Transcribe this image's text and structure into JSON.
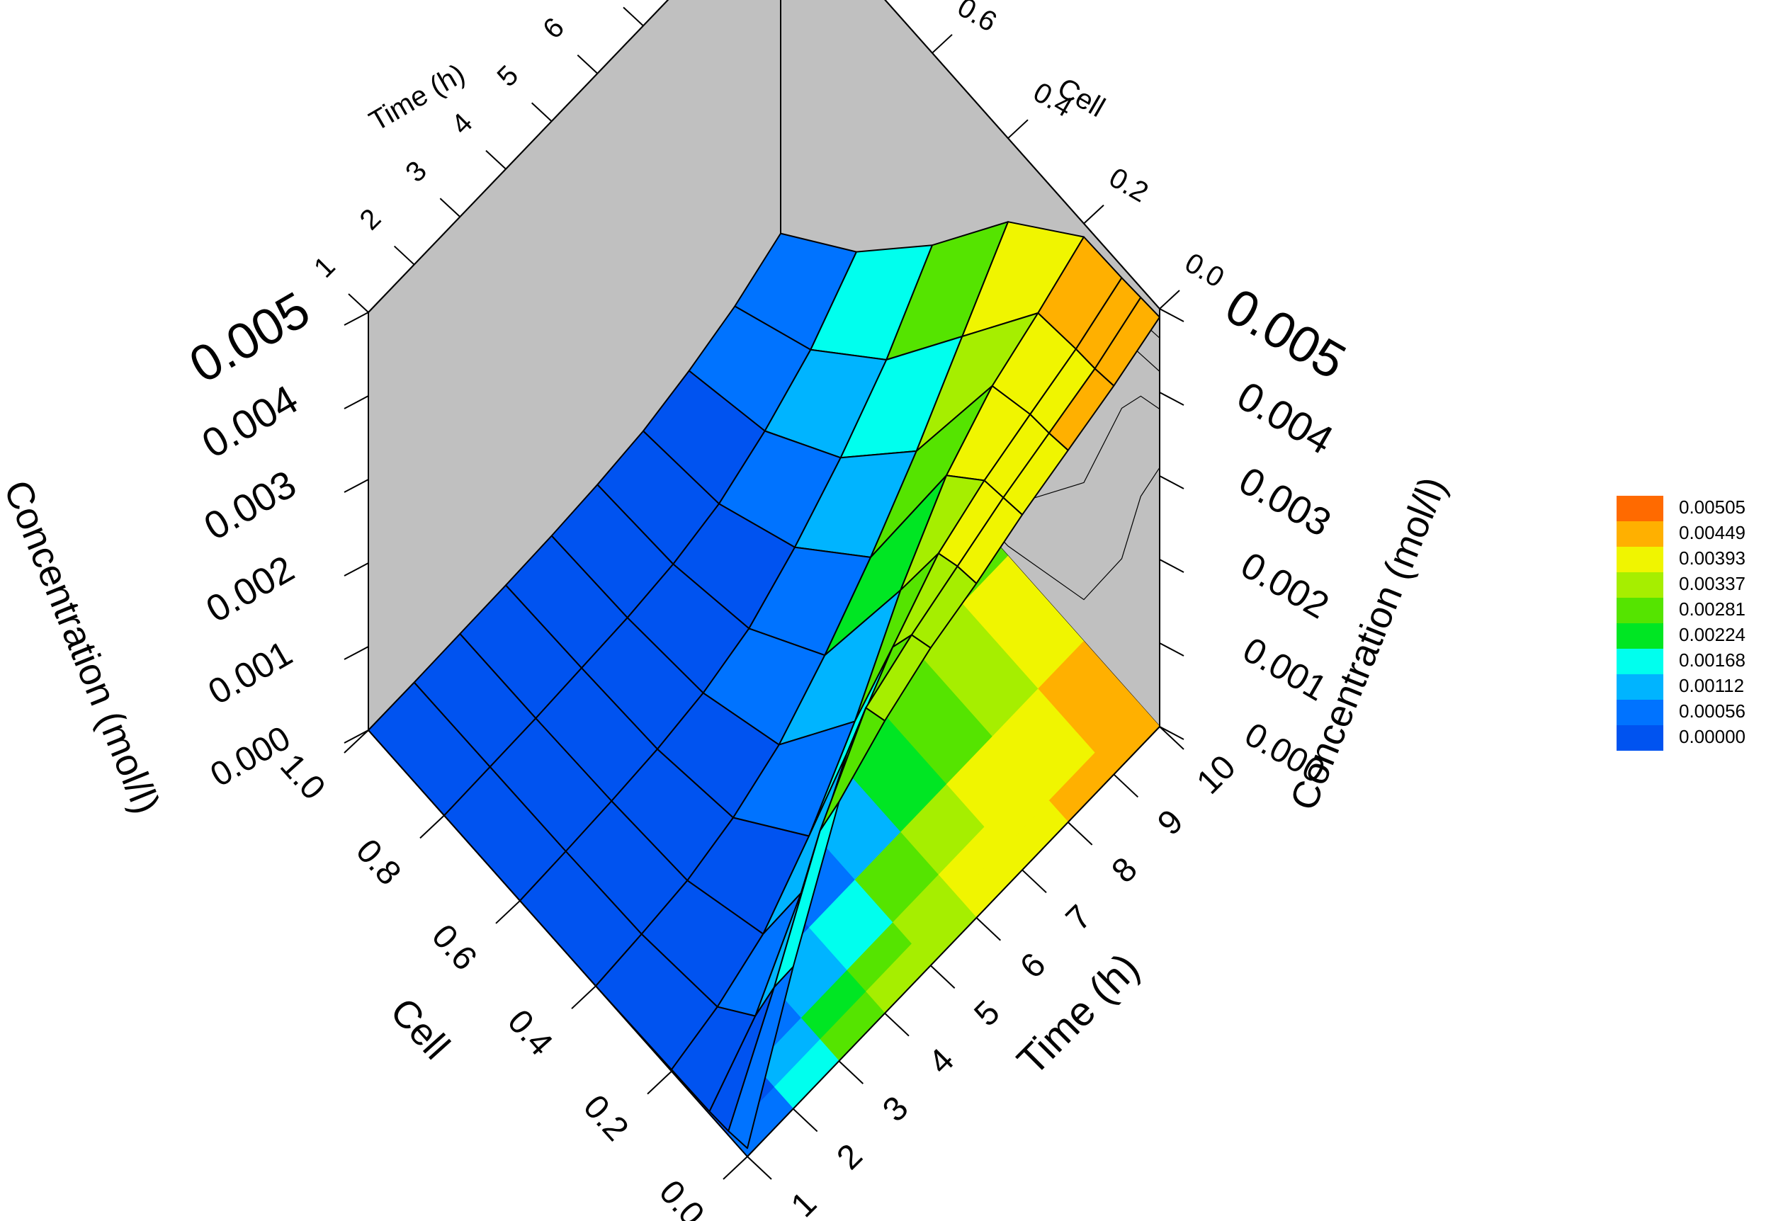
{
  "chart_data": {
    "type": "surface",
    "axes": {
      "cell": {
        "label": "Cell",
        "range": [
          0.0,
          1.0
        ],
        "ticks": [
          "0.0",
          "0.2",
          "0.4",
          "0.6",
          "0.8",
          "1.0"
        ]
      },
      "time": {
        "label": "Time (h)",
        "range": [
          1,
          10
        ],
        "ticks": [
          "1",
          "2",
          "3",
          "4",
          "5",
          "6",
          "7",
          "8",
          "9",
          "10"
        ]
      },
      "concentration": {
        "label": "Concentration (mol/l)",
        "range": [
          0.0,
          0.005
        ],
        "ticks": [
          "0.000",
          "0.001",
          "0.002",
          "0.003",
          "0.004",
          "0.005"
        ]
      }
    },
    "surface": {
      "cell_values": [
        0.0,
        0.05,
        0.1,
        0.2,
        0.4,
        0.6,
        0.8,
        1.0
      ],
      "time_values": [
        1,
        2,
        3,
        4,
        5,
        6,
        7,
        8,
        9,
        10
      ],
      "concentration": [
        [
          0.0001,
          0.0017,
          0.0031,
          0.0035,
          0.0038,
          0.004,
          0.00425,
          0.00445,
          0.00465,
          0.0049
        ],
        [
          5e-05,
          0.0012,
          0.0025,
          0.0034,
          0.0037,
          0.00395,
          0.0042,
          0.0044,
          0.0046,
          0.00488
        ],
        [
          3e-05,
          0.0006,
          0.0015,
          0.0026,
          0.0033,
          0.00385,
          0.00415,
          0.00437,
          0.00458,
          0.00486
        ],
        [
          2e-05,
          0.0002,
          0.0005,
          0.0011,
          0.0019,
          0.0029,
          0.0037,
          0.0042,
          0.0045,
          0.00484
        ],
        [
          0.0,
          5e-05,
          0.00012,
          0.0003,
          0.0006,
          0.0011,
          0.0017,
          0.0024,
          0.0032,
          0.004
        ],
        [
          0.0,
          2e-05,
          5e-05,
          0.0001,
          0.0002,
          0.0004,
          0.0008,
          0.0013,
          0.0019,
          0.0027
        ],
        [
          0.0,
          1e-05,
          2e-05,
          5e-05,
          8e-05,
          0.00015,
          0.0003,
          0.0006,
          0.001,
          0.0016
        ],
        [
          0.0,
          0.0,
          1e-05,
          2e-05,
          4e-05,
          8e-05,
          0.00015,
          0.0003,
          0.0005,
          0.0008
        ]
      ]
    },
    "legend": {
      "placement": "right",
      "entries": [
        {
          "label": "0.00505",
          "color": "#ff6a00"
        },
        {
          "label": "0.00449",
          "color": "#ffb000"
        },
        {
          "label": "0.00393",
          "color": "#f0f500"
        },
        {
          "label": "0.00337",
          "color": "#a6ee00"
        },
        {
          "label": "0.00281",
          "color": "#55e400"
        },
        {
          "label": "0.00224",
          "color": "#00e623"
        },
        {
          "label": "0.00168",
          "color": "#00ffee"
        },
        {
          "label": "0.00112",
          "color": "#00b4ff"
        },
        {
          "label": "0.00056",
          "color": "#0073ff"
        },
        {
          "label": "0.00000",
          "color": "#0053f0"
        }
      ]
    },
    "colors": {
      "panel_fill": "#c0c0c0",
      "background": "#ffffff",
      "mesh_line": "#000000"
    }
  }
}
